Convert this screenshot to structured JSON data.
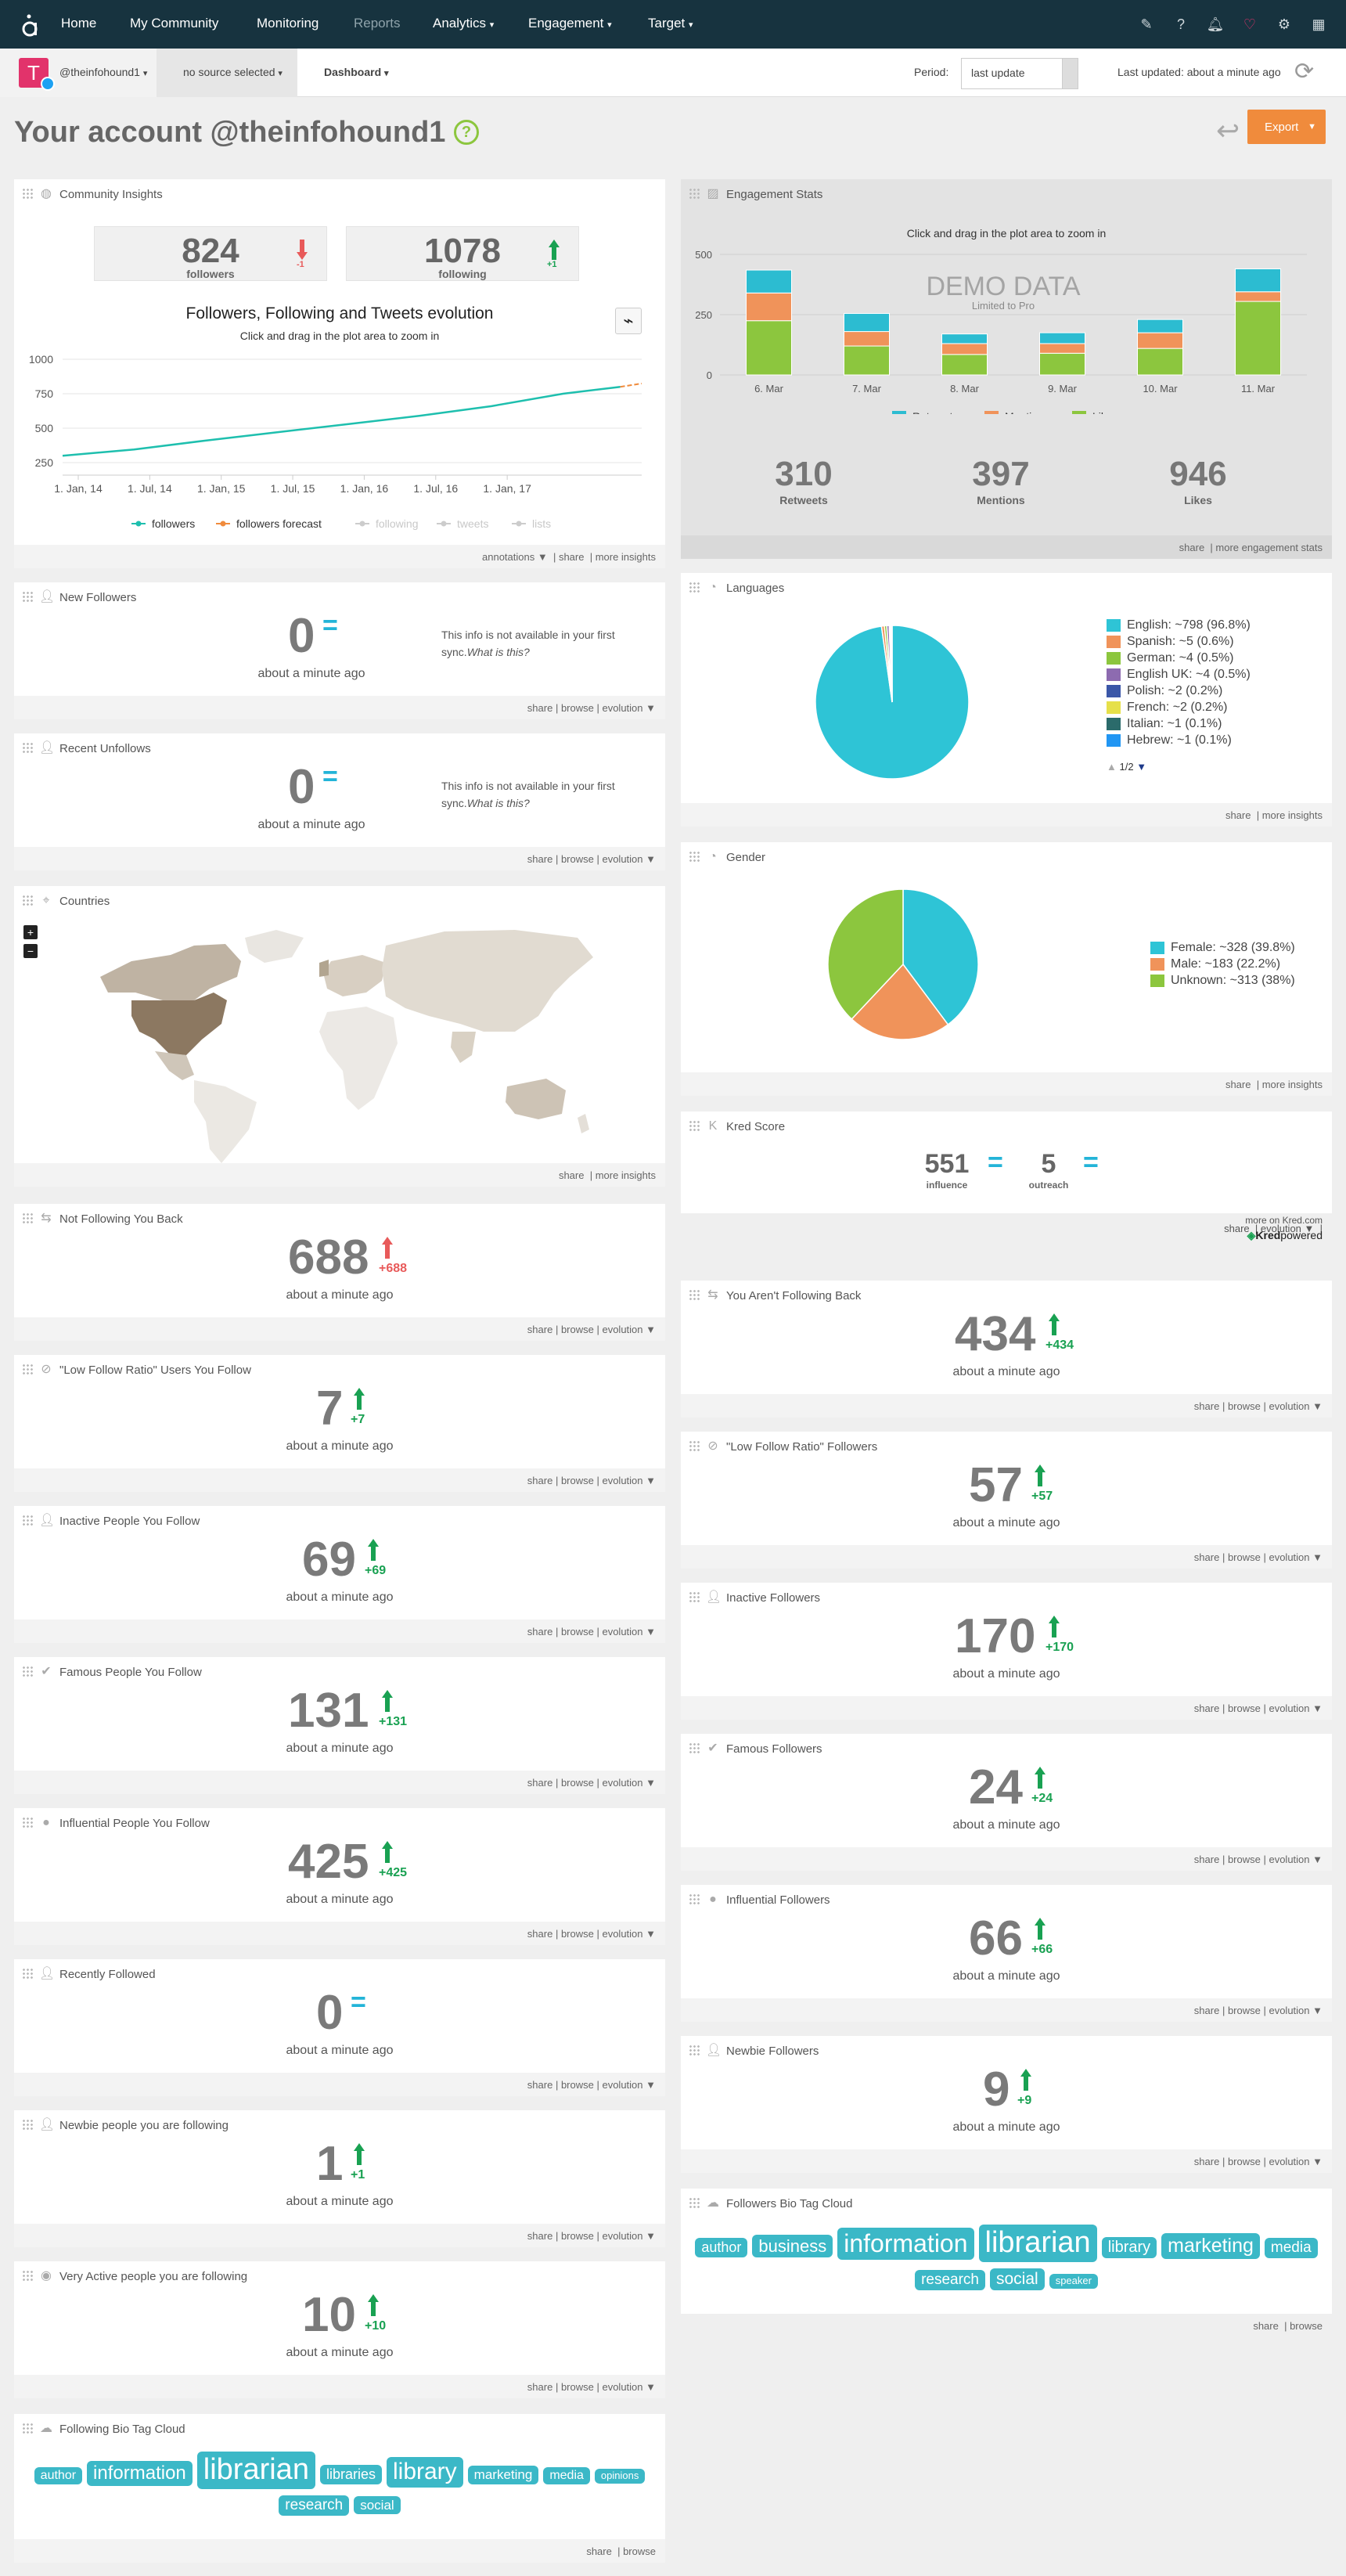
{
  "nav": {
    "home": "Home",
    "community": "My Community",
    "monitoring": "Monitoring",
    "reports": "Reports",
    "analytics": "Analytics",
    "engagement": "Engagement",
    "target": "Target"
  },
  "subbar": {
    "account": "@theinfohound1",
    "source": "no source selected",
    "dashboard": "Dashboard",
    "period_label": "Period:",
    "period_value": "last update",
    "last_updated": "Last updated: about a minute ago",
    "avatar_letter": "T"
  },
  "page": {
    "title": "Your account @theinfohound1",
    "help": "?",
    "export": "Export"
  },
  "community": {
    "title": "Community Insights",
    "followers": "824",
    "followers_label": "followers",
    "followers_change": "-1",
    "following": "1078",
    "following_label": "following",
    "following_change": "+1",
    "chart_title": "Followers, Following and Tweets evolution",
    "chart_sub": "Click and drag in the plot area to zoom in",
    "footer": [
      "annotations ▼",
      "share",
      "more insights"
    ]
  },
  "chart_data": [
    {
      "type": "line",
      "title": "Followers, Following and Tweets evolution",
      "subtitle": "Click and drag in the plot area to zoom in",
      "x_ticks": [
        "1. Jan, 14",
        "1. Jul, 14",
        "1. Jan, 15",
        "1. Jul, 15",
        "1. Jan, 16",
        "1. Jul, 16",
        "1. Jan, 17"
      ],
      "y_ticks": [
        250,
        500,
        750,
        1000
      ],
      "ylim": [
        250,
        1000
      ],
      "series": [
        {
          "name": "followers",
          "color": "#1ebfae",
          "x": [
            0,
            0.5,
            1,
            1.5,
            2,
            2.5,
            3,
            3.5,
            3.9
          ],
          "y": [
            300,
            345,
            410,
            470,
            530,
            590,
            660,
            750,
            800
          ]
        },
        {
          "name": "followers forecast",
          "color": "#f08b3c",
          "x": [
            3.9,
            4.05
          ],
          "y": [
            800,
            824
          ]
        }
      ],
      "legend": [
        "followers",
        "followers forecast",
        "following",
        "tweets",
        "lists"
      ],
      "legend_hidden": [
        "following",
        "tweets",
        "lists"
      ]
    },
    {
      "type": "bar",
      "title": "Engagement Stats",
      "subtitle": "Click and drag in the plot area to zoom in",
      "watermark": "DEMO DATA",
      "watermark_sub": "Limited to Pro",
      "categories": [
        "6. Mar",
        "7. Mar",
        "8. Mar",
        "9. Mar",
        "10. Mar",
        "11. Mar"
      ],
      "ylim": [
        0,
        500
      ],
      "y_ticks": [
        0,
        250,
        500
      ],
      "series": [
        {
          "name": "Likes",
          "color": "#8cc63e",
          "values": [
            225,
            120,
            85,
            90,
            110,
            305
          ]
        },
        {
          "name": "Mentions",
          "color": "#f0935a",
          "values": [
            115,
            60,
            45,
            40,
            65,
            40
          ]
        },
        {
          "name": "Retweets",
          "color": "#2cbcd1",
          "values": [
            95,
            75,
            40,
            45,
            55,
            95
          ]
        }
      ],
      "legend": [
        "Retweets",
        "Mentions",
        "Likes"
      ]
    },
    {
      "type": "pie",
      "title": "Languages",
      "slices": [
        {
          "label": "English: ~798 (96.8%)",
          "value": 96.8,
          "color": "#2ec4d6"
        },
        {
          "label": "Spanish: ~5 (0.6%)",
          "value": 0.6,
          "color": "#f0935a"
        },
        {
          "label": "German: ~4 (0.5%)",
          "value": 0.5,
          "color": "#8cc63e"
        },
        {
          "label": "English UK: ~4 (0.5%)",
          "value": 0.5,
          "color": "#8d6bb0"
        },
        {
          "label": "Polish: ~2 (0.2%)",
          "value": 0.2,
          "color": "#3b57a8"
        },
        {
          "label": "French: ~2 (0.2%)",
          "value": 0.2,
          "color": "#e6e04a"
        },
        {
          "label": "Italian: ~1 (0.1%)",
          "value": 0.1,
          "color": "#2b6b6b"
        },
        {
          "label": "Hebrew: ~1 (0.1%)",
          "value": 0.1,
          "color": "#2196f3"
        }
      ],
      "pager": "1/2"
    },
    {
      "type": "pie",
      "title": "Gender",
      "slices": [
        {
          "label": "Female: ~328 (39.8%)",
          "value": 39.8,
          "color": "#2ec4d6"
        },
        {
          "label": "Male: ~183 (22.2%)",
          "value": 22.2,
          "color": "#f0935a"
        },
        {
          "label": "Unknown: ~313 (38%)",
          "value": 38,
          "color": "#8cc63e"
        }
      ]
    }
  ],
  "engagement": {
    "title": "Engagement Stats",
    "retweets": "310",
    "retweets_label": "Retweets",
    "mentions": "397",
    "mentions_label": "Mentions",
    "likes": "946",
    "likes_label": "Likes",
    "footer": [
      "share",
      "more engagement stats"
    ]
  },
  "languages": {
    "title": "Languages",
    "footer": [
      "share",
      "more insights"
    ]
  },
  "gender": {
    "title": "Gender",
    "footer": [
      "share",
      "more insights"
    ]
  },
  "countries": {
    "title": "Countries",
    "footer": [
      "share",
      "more insights"
    ],
    "zoom_in": "+",
    "zoom_out": "−"
  },
  "kred": {
    "title": "Kred Score",
    "influence": "551",
    "influence_label": "influence",
    "outreach": "5",
    "outreach_label": "outreach",
    "more": "more on Kred.com",
    "brand": "Kred",
    "brand_suffix": "powered",
    "footer": [
      "share",
      "evolution ▼"
    ]
  },
  "common": {
    "ago": "about a minute ago",
    "na_text": "This info is not available in your first sync.",
    "what": "What is this?",
    "share": "share",
    "browse": "browse",
    "evolution": "evolution ▼",
    "eq": "="
  },
  "left_cards": [
    {
      "title": "New Followers",
      "value": "0",
      "kind": "eq",
      "note": true
    },
    {
      "title": "Recent Unfollows",
      "value": "0",
      "kind": "eq",
      "note": true
    },
    {
      "title": "Not Following You Back",
      "value": "688",
      "kind": "up-red",
      "change": "+688"
    },
    {
      "title": "\"Low Follow Ratio\" Users You Follow",
      "value": "7",
      "kind": "up",
      "change": "+7"
    },
    {
      "title": "Inactive People You Follow",
      "value": "69",
      "kind": "up",
      "change": "+69"
    },
    {
      "title": "Famous People You Follow",
      "value": "131",
      "kind": "up",
      "change": "+131"
    },
    {
      "title": "Influential People You Follow",
      "value": "425",
      "kind": "up",
      "change": "+425"
    },
    {
      "title": "Recently Followed",
      "value": "0",
      "kind": "eq"
    },
    {
      "title": "Newbie people you are following",
      "value": "1",
      "kind": "up",
      "change": "+1"
    },
    {
      "title": "Very Active people you are following",
      "value": "10",
      "kind": "up",
      "change": "+10"
    }
  ],
  "right_cards": [
    {
      "title": "You Aren't Following Back",
      "value": "434",
      "kind": "up",
      "change": "+434"
    },
    {
      "title": "\"Low Follow Ratio\" Followers",
      "value": "57",
      "kind": "up",
      "change": "+57"
    },
    {
      "title": "Inactive Followers",
      "value": "170",
      "kind": "up",
      "change": "+170"
    },
    {
      "title": "Famous Followers",
      "value": "24",
      "kind": "up",
      "change": "+24"
    },
    {
      "title": "Influential Followers",
      "value": "66",
      "kind": "up",
      "change": "+66"
    },
    {
      "title": "Newbie Followers",
      "value": "9",
      "kind": "up",
      "change": "+9"
    }
  ],
  "following_tags": {
    "title": "Following Bio Tag Cloud",
    "tags": [
      {
        "text": "author",
        "size": 16
      },
      {
        "text": "information",
        "size": 24
      },
      {
        "text": "librarian",
        "size": 38
      },
      {
        "text": "libraries",
        "size": 18
      },
      {
        "text": "library",
        "size": 30
      },
      {
        "text": "marketing",
        "size": 17
      },
      {
        "text": "media",
        "size": 16
      },
      {
        "text": "opinions",
        "size": 13
      },
      {
        "text": "research",
        "size": 19
      },
      {
        "text": "social",
        "size": 17
      }
    ],
    "footer": [
      "share",
      "browse"
    ]
  },
  "followers_tags": {
    "title": "Followers Bio Tag Cloud",
    "tags": [
      {
        "text": "author",
        "size": 18
      },
      {
        "text": "business",
        "size": 22
      },
      {
        "text": "information",
        "size": 32
      },
      {
        "text": "librarian",
        "size": 38
      },
      {
        "text": "library",
        "size": 20
      },
      {
        "text": "marketing",
        "size": 25
      },
      {
        "text": "media",
        "size": 19
      },
      {
        "text": "research",
        "size": 19
      },
      {
        "text": "social",
        "size": 21
      },
      {
        "text": "speaker",
        "size": 13
      }
    ],
    "footer": [
      "share",
      "browse"
    ]
  }
}
